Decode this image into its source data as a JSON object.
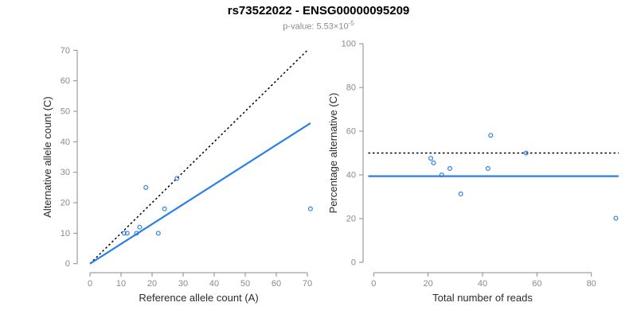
{
  "header": {
    "title": "rs73522022 - ENSG00000095209",
    "pvalue_prefix": "p-value: ",
    "pvalue_mantissa_base": "5.53×10",
    "pvalue_exponent": "-5"
  },
  "colors": {
    "accent_blue": "#2b7fe8",
    "axis_gray": "#8a8a8a",
    "label_dark": "#2b2b2b",
    "dotted_black": "#000000"
  },
  "chart_data": [
    {
      "type": "scatter",
      "panel": "left",
      "xlabel": "Reference allele count (A)",
      "ylabel": "Alternative allele count (C)",
      "xlim": [
        0,
        71
      ],
      "ylim": [
        0,
        70
      ],
      "xticks": [
        0,
        10,
        20,
        30,
        40,
        50,
        60,
        70
      ],
      "yticks": [
        0,
        10,
        20,
        30,
        40,
        50,
        60,
        70
      ],
      "grid": false,
      "points": [
        [
          11,
          10
        ],
        [
          12,
          10
        ],
        [
          15,
          10
        ],
        [
          16,
          12
        ],
        [
          22,
          10
        ],
        [
          24,
          18
        ],
        [
          18,
          25
        ],
        [
          28,
          28
        ],
        [
          71,
          18
        ]
      ],
      "lines": [
        {
          "name": "identity-line-y-equals-x",
          "style": "dotted",
          "color": "#000000",
          "from": [
            0,
            0
          ],
          "to": [
            70,
            70
          ]
        },
        {
          "name": "expected-allelic-ratio-line",
          "style": "solid",
          "color": "#2b7fe8",
          "from": [
            0,
            0
          ],
          "to": [
            71,
            46.1
          ]
        }
      ]
    },
    {
      "type": "scatter",
      "panel": "right",
      "xlabel": "Total number of reads",
      "ylabel": "Percentage alternative (C)",
      "xlim": [
        0,
        92
      ],
      "ylim": [
        0,
        100
      ],
      "xticks": [
        0,
        20,
        40,
        60,
        80
      ],
      "yticks": [
        0,
        20,
        40,
        60,
        80,
        100
      ],
      "grid": false,
      "points": [
        [
          21,
          47.6
        ],
        [
          22,
          45.5
        ],
        [
          25,
          40
        ],
        [
          28,
          42.9
        ],
        [
          32,
          31.3
        ],
        [
          42,
          42.9
        ],
        [
          43,
          58.1
        ],
        [
          56,
          50
        ],
        [
          89,
          20.2
        ]
      ],
      "lines": [
        {
          "name": "fifty-percent-line",
          "style": "dotted",
          "color": "#000000",
          "from": [
            -2,
            50
          ],
          "to": [
            90,
            50
          ]
        },
        {
          "name": "mean-percentage-line",
          "style": "solid",
          "color": "#2b7fe8",
          "from": [
            -2,
            39.4
          ],
          "to": [
            90,
            39.4
          ]
        }
      ]
    }
  ]
}
